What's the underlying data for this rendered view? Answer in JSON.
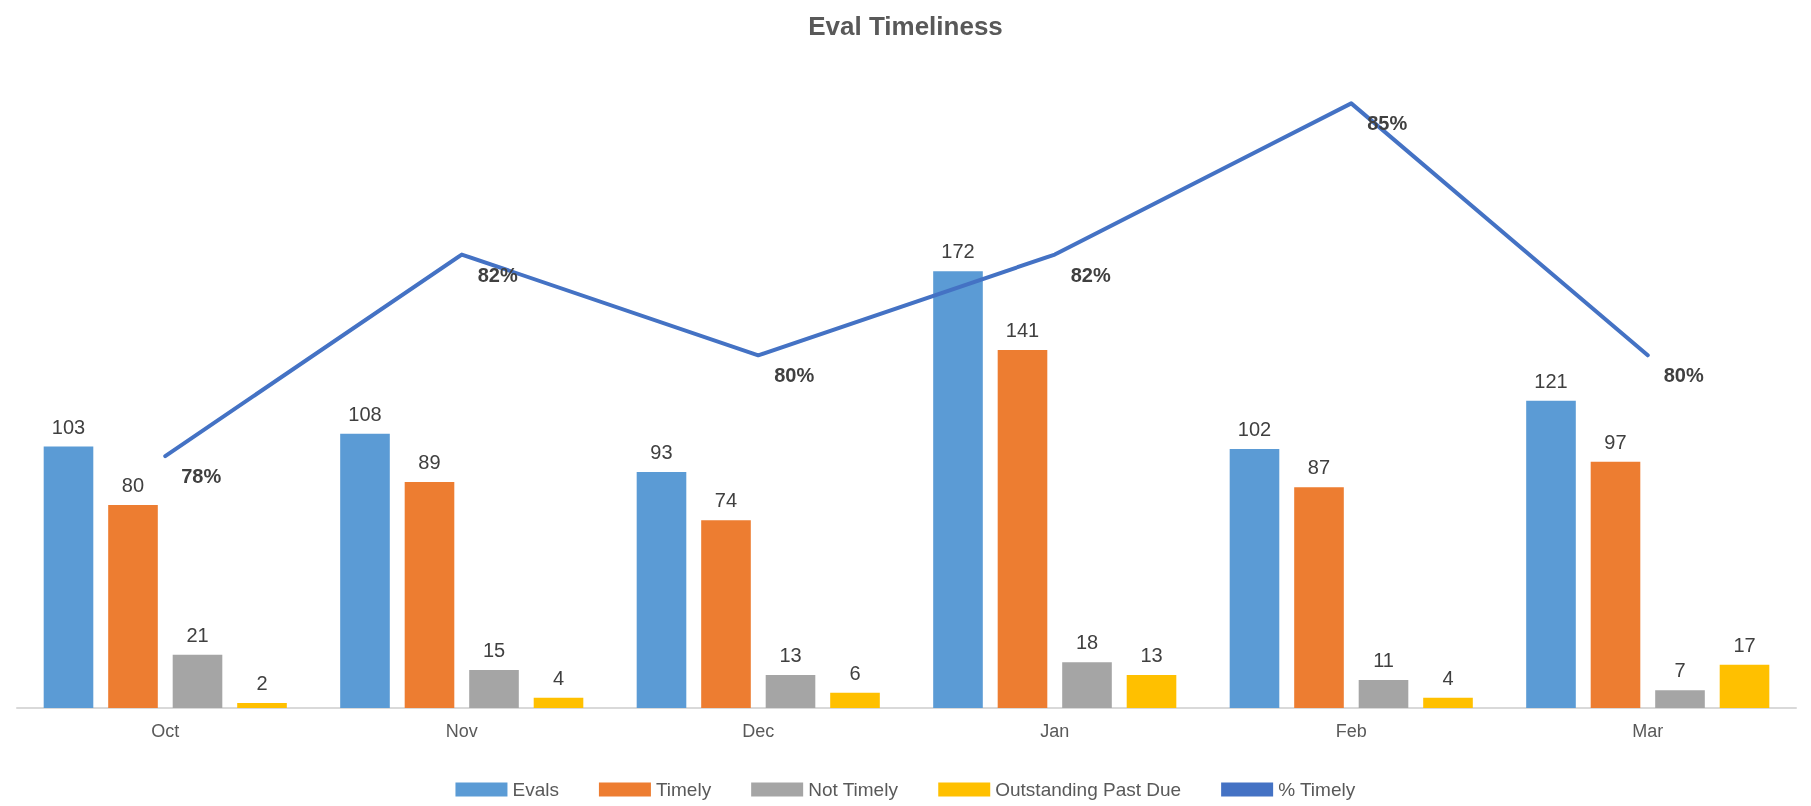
{
  "chart_data": {
    "type": "bar",
    "title": "Eval Timeliness",
    "categories": [
      "Oct",
      "Nov",
      "Dec",
      "Jan",
      "Feb",
      "Mar"
    ],
    "series": [
      {
        "name": "Evals",
        "color": "#5b9bd5",
        "values": [
          103,
          108,
          93,
          172,
          102,
          121
        ]
      },
      {
        "name": "Timely",
        "color": "#ed7d31",
        "values": [
          80,
          89,
          74,
          141,
          87,
          97
        ]
      },
      {
        "name": "Not Timely",
        "color": "#a5a5a5",
        "values": [
          21,
          15,
          13,
          18,
          11,
          7
        ]
      },
      {
        "name": "Outstanding Past Due",
        "color": "#ffc000",
        "values": [
          2,
          4,
          6,
          13,
          4,
          17
        ]
      },
      {
        "name": "% Timely",
        "type": "line",
        "axis": "y2",
        "color": "#4472c4",
        "values": [
          78,
          82,
          80,
          82,
          85,
          80
        ],
        "value_labels": [
          "78%",
          "82%",
          "80%",
          "82%",
          "85%",
          "80%"
        ]
      }
    ],
    "tick_labels": "x",
    "data_labels": true,
    "legend": "bottom",
    "marker": "none",
    "line_style": "solid"
  }
}
